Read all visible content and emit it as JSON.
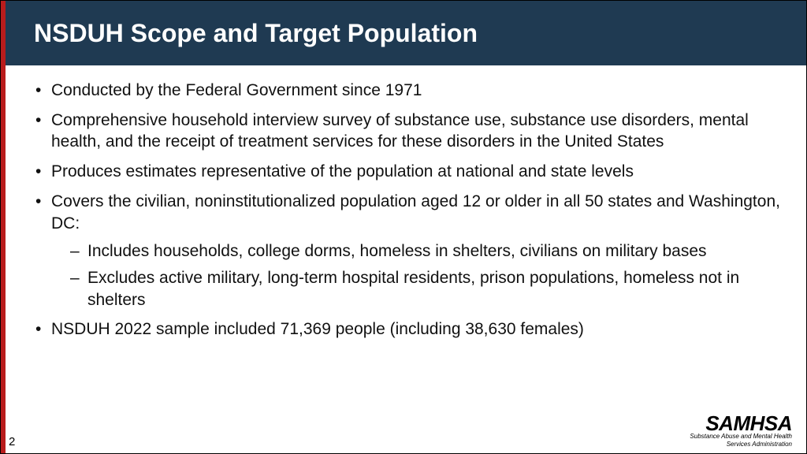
{
  "colors": {
    "header_bg": "#1f3a52",
    "header_text": "#ffffff",
    "accent_bar": "#b91c1c",
    "body_text": "#111111",
    "background": "#ffffff"
  },
  "typography": {
    "title_fontsize": 32,
    "body_fontsize": 21,
    "page_number_fontsize": 15
  },
  "slide": {
    "title": "NSDUH Scope and Target Population",
    "page_number": "2",
    "bullets": [
      {
        "text": "Conducted by the Federal Government since 1971"
      },
      {
        "text": "Comprehensive household interview survey of substance use, substance use disorders, mental health, and the receipt of treatment services for these disorders in the United States"
      },
      {
        "text": "Produces estimates representative of the population at national and state levels"
      },
      {
        "text": "Covers the civilian, noninstitutionalized population aged 12 or older in all 50 states and Washington, DC:",
        "sub": [
          "Includes households, college dorms, homeless in shelters, civilians on military bases",
          "Excludes active military, long-term hospital residents, prison populations, homeless not in shelters"
        ]
      },
      {
        "text": "NSDUH 2022 sample included 71,369 people (including 38,630 females)"
      }
    ]
  },
  "logo": {
    "brand": "SAMHSA",
    "tagline1": "Substance Abuse and Mental Health",
    "tagline2": "Services Administration"
  }
}
